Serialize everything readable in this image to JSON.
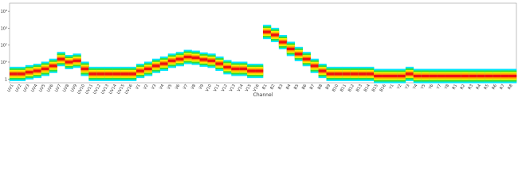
{
  "chart_data": {
    "type": "band",
    "x_label": "Channel",
    "categories": [
      "UV1",
      "UV2",
      "UV3",
      "UV4",
      "UV5",
      "UV6",
      "UV7",
      "UV8",
      "UV9",
      "UV10",
      "UV11",
      "UV12",
      "UV13",
      "UV14",
      "UV15",
      "UV16",
      "V1",
      "V2",
      "V3",
      "V4",
      "V5",
      "V6",
      "V7",
      "V8",
      "V9",
      "V10",
      "V11",
      "V12",
      "V13",
      "V14",
      "V15",
      "V16",
      "B1",
      "B2",
      "B3",
      "B4",
      "B5",
      "B6",
      "B7",
      "B8",
      "B9",
      "B10",
      "B11",
      "B12",
      "B13",
      "B14",
      "B15",
      "B16",
      "Y1",
      "Y2",
      "Y3",
      "Y4",
      "Y5",
      "Y6",
      "Y7",
      "Y8",
      "R1",
      "R2",
      "R3",
      "R4",
      "R5",
      "R6",
      "R7",
      "R8"
    ],
    "values": [
      2,
      2,
      2.5,
      3,
      4,
      6,
      15,
      10,
      12,
      4,
      2,
      2,
      2,
      2,
      2,
      2,
      3,
      4,
      6,
      8,
      12,
      15,
      20,
      18,
      14,
      12,
      8,
      5,
      4,
      4,
      3,
      3,
      600,
      400,
      150,
      60,
      30,
      15,
      6,
      3,
      2,
      2,
      2,
      2,
      2,
      2,
      1.5,
      1.5,
      1.5,
      1.5,
      2,
      1.5,
      1.5,
      1.5,
      1.5,
      1.5,
      1.5,
      1.5,
      1.5,
      1.5,
      1.5,
      1.5,
      1.5,
      1.5
    ],
    "band_colors": [
      "#00e5ff",
      "#33dd33",
      "#ffee00",
      "#ff9900",
      "#ee1111"
    ],
    "log_y": true,
    "ylim": [
      0.6,
      30000
    ],
    "yticks": [
      1,
      {
        "value": 10,
        "label": "10¹"
      },
      {
        "value": 100,
        "label": "10²"
      },
      {
        "value": 1000,
        "label": "10³"
      },
      {
        "value": 10000,
        "label": "10⁴"
      }
    ]
  }
}
